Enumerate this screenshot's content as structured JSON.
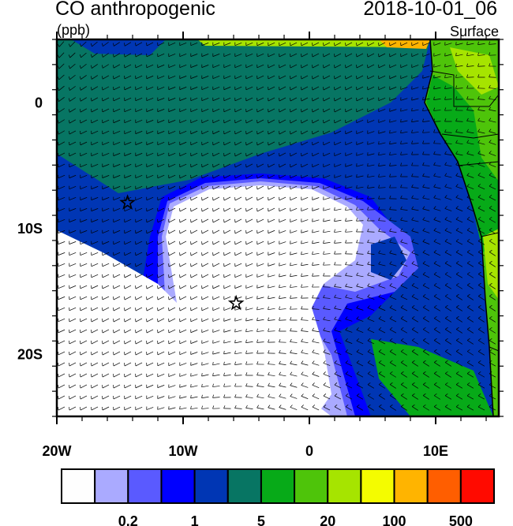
{
  "header": {
    "title": "CO anthropogenic",
    "units": "(ppb)",
    "datetime": "2018-10-01_06",
    "level": "Surface"
  },
  "map": {
    "lon_range": [
      -20,
      15
    ],
    "lat_range": [
      -25,
      5
    ],
    "x_ticks": [
      {
        "lon": -20,
        "label": "20W"
      },
      {
        "lon": -10,
        "label": "10W"
      },
      {
        "lon": 0,
        "label": "0"
      },
      {
        "lon": 10,
        "label": "10E"
      }
    ],
    "y_ticks": [
      {
        "lat": 0,
        "label": "0"
      },
      {
        "lat": -10,
        "label": "10S"
      },
      {
        "lat": -20,
        "label": "20S"
      }
    ],
    "markers": [
      {
        "type": "star",
        "lon": -14.4,
        "lat": -8.0
      },
      {
        "type": "star",
        "lon": -5.8,
        "lat": -16.0
      }
    ],
    "overlay": "wind-vectors"
  },
  "colorbar": {
    "colors": [
      "#fefefe",
      "#aaaaff",
      "#5a5aff",
      "#0000ff",
      "#0036b4",
      "#077563",
      "#07aa18",
      "#4ec40a",
      "#a6e400",
      "#f4fc00",
      "#ffb400",
      "#ff5e00",
      "#ff0a00"
    ],
    "boundaries": [
      0.1,
      0.2,
      0.5,
      1,
      2,
      5,
      10,
      20,
      50,
      100,
      200,
      500
    ],
    "labels": [
      {
        "after_box": 2,
        "text": "0.2"
      },
      {
        "after_box": 4,
        "text": "1"
      },
      {
        "after_box": 6,
        "text": "5"
      },
      {
        "after_box": 8,
        "text": "20"
      },
      {
        "after_box": 10,
        "text": "100"
      },
      {
        "after_box": 12,
        "text": "500"
      }
    ]
  }
}
